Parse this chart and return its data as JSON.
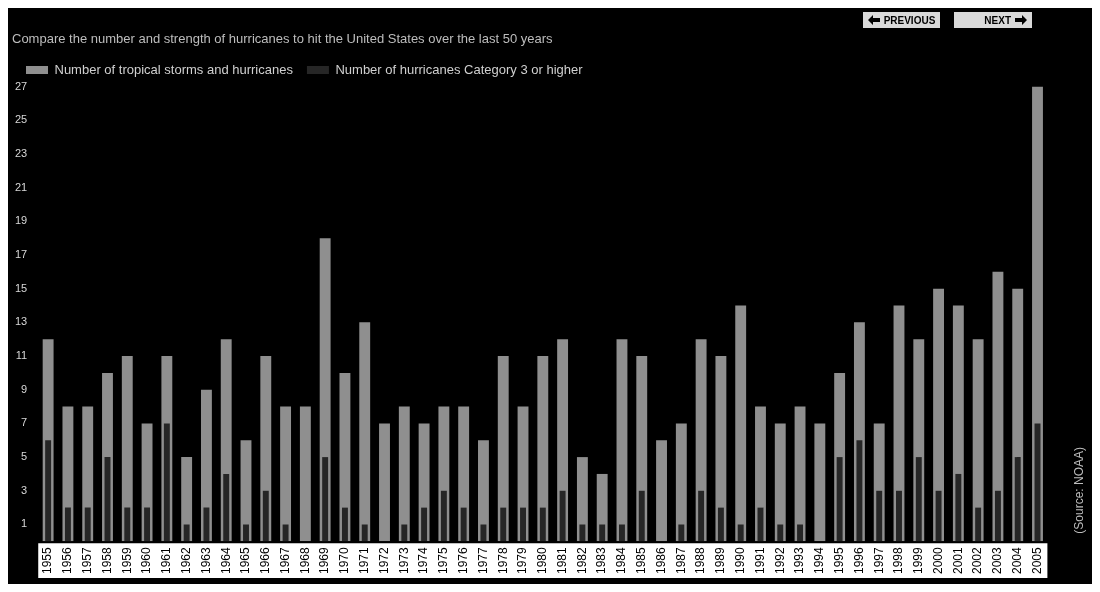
{
  "chart_data": {
    "type": "bar",
    "title": "Compare the number and strength of hurricanes to hit the United States over the last 50 years",
    "categories": [
      "1955",
      "1956",
      "1957",
      "1958",
      "1959",
      "1960",
      "1961",
      "1962",
      "1963",
      "1964",
      "1965",
      "1966",
      "1967",
      "1968",
      "1969",
      "1970",
      "1971",
      "1972",
      "1973",
      "1974",
      "1975",
      "1976",
      "1977",
      "1978",
      "1979",
      "1980",
      "1981",
      "1982",
      "1983",
      "1984",
      "1985",
      "1986",
      "1987",
      "1988",
      "1989",
      "1990",
      "1991",
      "1992",
      "1993",
      "1994",
      "1995",
      "1996",
      "1997",
      "1998",
      "1999",
      "2000",
      "2001",
      "2002",
      "2003",
      "2004",
      "2005"
    ],
    "series": [
      {
        "name": "Number of tropical storms and hurricanes",
        "color": "#8f8f8f",
        "values": [
          12,
          8,
          8,
          10,
          11,
          7,
          11,
          5,
          9,
          12,
          6,
          11,
          8,
          8,
          18,
          10,
          13,
          7,
          8,
          7,
          8,
          8,
          6,
          11,
          8,
          11,
          12,
          5,
          4,
          12,
          11,
          6,
          7,
          12,
          11,
          14,
          8,
          7,
          8,
          7,
          10,
          13,
          7,
          14,
          12,
          15,
          14,
          12,
          16,
          15,
          27
        ]
      },
      {
        "name": "Number of hurricanes Category 3 or higher",
        "color": "#262626",
        "values": [
          6,
          2,
          2,
          5,
          2,
          2,
          7,
          1,
          2,
          4,
          1,
          3,
          1,
          0,
          5,
          2,
          1,
          0,
          1,
          2,
          3,
          2,
          1,
          2,
          2,
          2,
          3,
          1,
          1,
          1,
          3,
          0,
          1,
          3,
          2,
          1,
          2,
          1,
          1,
          0,
          5,
          6,
          3,
          3,
          5,
          3,
          4,
          2,
          3,
          5,
          7
        ]
      }
    ],
    "ylim": [
      0,
      27
    ],
    "yticks": [
      1,
      3,
      5,
      7,
      9,
      11,
      13,
      15,
      17,
      19,
      21,
      23,
      25,
      27
    ],
    "grid": false,
    "legend": "top left",
    "annotations": [
      "PREVIOUS",
      "NEXT",
      "(Source: NOAA)"
    ]
  }
}
